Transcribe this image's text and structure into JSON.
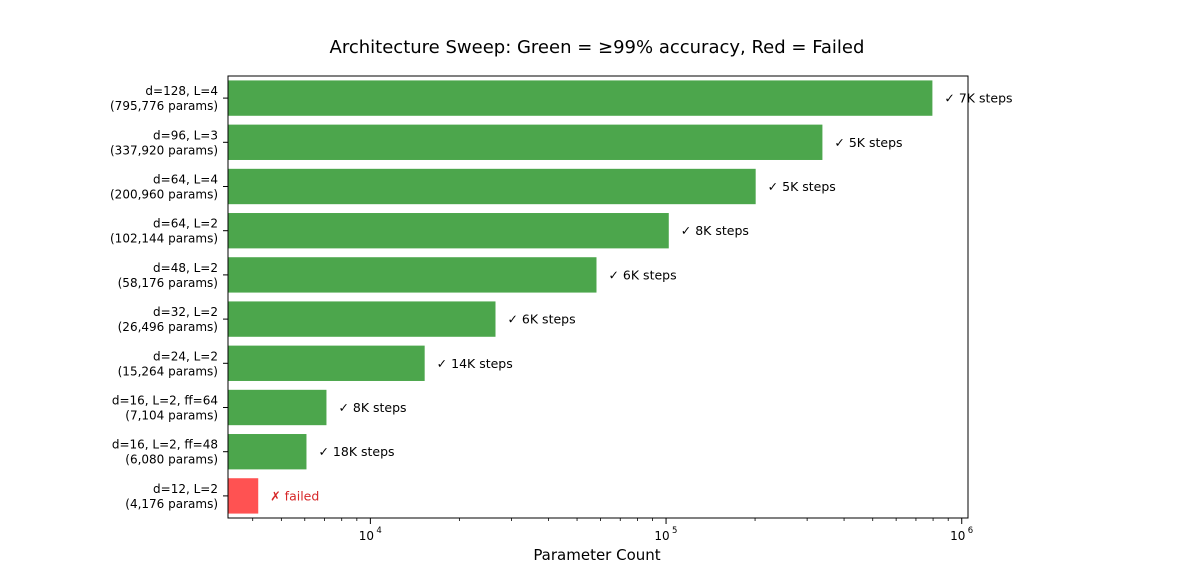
{
  "chart_data": {
    "type": "bar",
    "orientation": "horizontal",
    "title": "Architecture Sweep: Green = ≥99% accuracy, Red = Failed",
    "xlabel": "Parameter Count",
    "ylabel": "",
    "x_scale": "log",
    "xlim": [
      3300,
      1050000
    ],
    "x_ticks": [
      {
        "value": 10000,
        "base": "10",
        "exponent": "4"
      },
      {
        "value": 100000,
        "base": "10",
        "exponent": "5"
      },
      {
        "value": 1000000,
        "base": "10",
        "exponent": "6"
      }
    ],
    "grid": false,
    "legend": "none",
    "colors": {
      "success": "#4ca64c",
      "failed": "#ff5252",
      "success_text": "#000000",
      "failed_text": "#d62728"
    },
    "bars": [
      {
        "label_line1": "d=128, L=4",
        "label_line2": "(795,776 params)",
        "value": 795776,
        "status": "success",
        "annotation": "✓ 7K steps"
      },
      {
        "label_line1": "d=96, L=3",
        "label_line2": "(337,920 params)",
        "value": 337920,
        "status": "success",
        "annotation": "✓ 5K steps"
      },
      {
        "label_line1": "d=64, L=4",
        "label_line2": "(200,960 params)",
        "value": 200960,
        "status": "success",
        "annotation": "✓ 5K steps"
      },
      {
        "label_line1": "d=64, L=2",
        "label_line2": "(102,144 params)",
        "value": 102144,
        "status": "success",
        "annotation": "✓ 8K steps"
      },
      {
        "label_line1": "d=48, L=2",
        "label_line2": "(58,176 params)",
        "value": 58176,
        "status": "success",
        "annotation": "✓ 6K steps"
      },
      {
        "label_line1": "d=32, L=2",
        "label_line2": "(26,496 params)",
        "value": 26496,
        "status": "success",
        "annotation": "✓ 6K steps"
      },
      {
        "label_line1": "d=24, L=2",
        "label_line2": "(15,264 params)",
        "value": 15264,
        "status": "success",
        "annotation": "✓ 14K steps"
      },
      {
        "label_line1": "d=16, L=2, ff=64",
        "label_line2": "(7,104 params)",
        "value": 7104,
        "status": "success",
        "annotation": "✓ 8K steps"
      },
      {
        "label_line1": "d=16, L=2, ff=48",
        "label_line2": "(6,080 params)",
        "value": 6080,
        "status": "success",
        "annotation": "✓ 18K steps"
      },
      {
        "label_line1": "d=12, L=2",
        "label_line2": "(4,176 params)",
        "value": 4176,
        "status": "failed",
        "annotation": "✗ failed"
      }
    ]
  }
}
